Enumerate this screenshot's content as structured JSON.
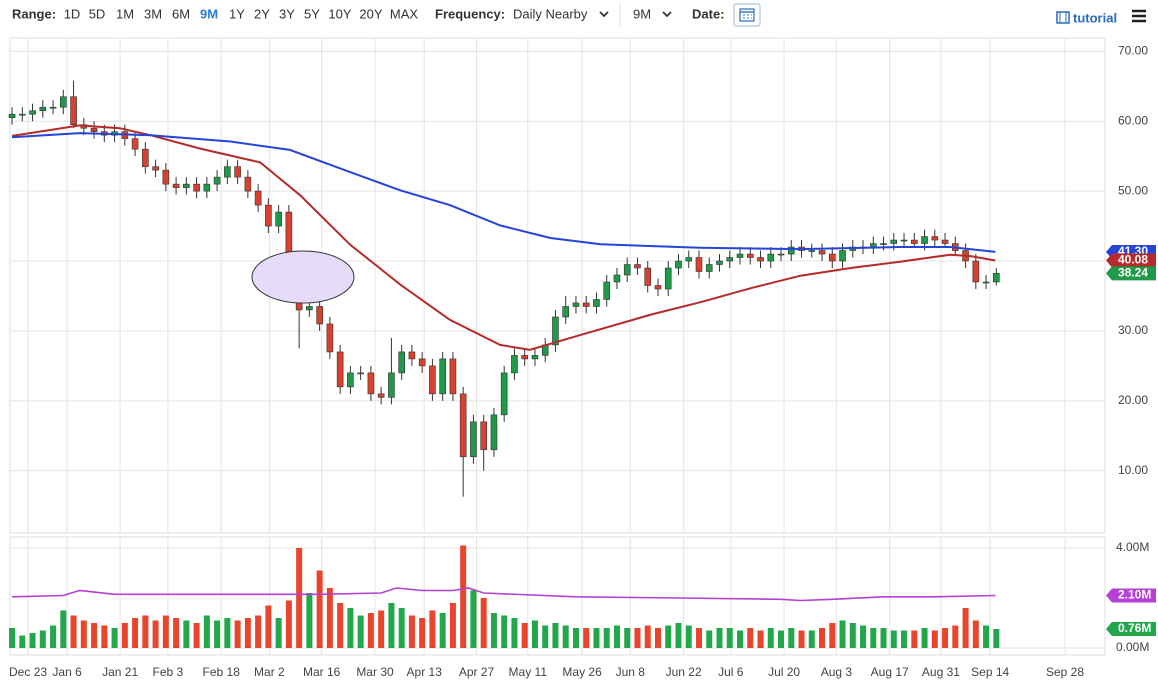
{
  "toolbar": {
    "range_label": "Range:",
    "ranges": [
      "1D",
      "5D",
      "1M",
      "3M",
      "6M",
      "9M",
      "1Y",
      "2Y",
      "3Y",
      "5Y",
      "10Y",
      "20Y",
      "MAX"
    ],
    "active": 5,
    "frequency_label": "Frequency:",
    "frequency": "Daily Nearby",
    "period": "9M",
    "date_label": "Date:",
    "tutorial": "tutorial"
  },
  "chart_data": [
    {
      "type": "candlestick",
      "up_color": "#1f9a48",
      "down_color": "#d8412f",
      "ylim": [
        1.1,
        71.9
      ],
      "yticks": [
        {
          "value": 10,
          "label": "10.00"
        },
        {
          "value": 20,
          "label": "20.00"
        },
        {
          "value": 30,
          "label": "30.00"
        },
        {
          "value": 40,
          "label": "40.00"
        },
        {
          "value": 50,
          "label": "50.00"
        },
        {
          "value": 60,
          "label": "60.00"
        },
        {
          "value": 70,
          "label": "70.00"
        }
      ],
      "open": [
        60.5,
        61,
        61,
        61.5,
        62,
        62,
        63.5,
        59.5,
        59,
        58.5,
        58,
        58.5,
        57.5,
        56,
        53.5,
        53,
        51,
        50.5,
        51,
        50,
        51,
        52,
        53.5,
        52,
        50,
        48,
        45,
        47,
        34,
        33,
        33.5,
        31,
        27,
        22,
        24,
        24,
        21,
        20.5,
        24,
        27,
        26,
        25,
        21,
        26,
        21,
        12,
        17,
        13,
        18,
        24,
        26.5,
        26,
        26.5,
        28,
        32,
        33.5,
        34,
        33.5,
        34.5,
        37,
        38,
        39.5,
        39,
        36.5,
        36,
        39,
        40,
        40.5,
        38.5,
        39.5,
        40,
        40.5,
        41,
        40.5,
        40,
        41,
        41,
        42,
        41.5,
        41.5,
        41,
        40,
        41.5,
        42,
        42,
        42.5,
        42.5,
        43,
        43,
        42.5,
        43.5,
        43,
        42.5,
        41.5,
        40,
        37,
        37
      ],
      "high": [
        62,
        62,
        62.5,
        63,
        63,
        64.5,
        65.8,
        60.5,
        60,
        59.5,
        59.5,
        59.5,
        58.5,
        57,
        54.5,
        54,
        52,
        52,
        52,
        52,
        53,
        54.5,
        54.5,
        53,
        51,
        49,
        48,
        48,
        36.5,
        34.5,
        34.5,
        32,
        28,
        25,
        25,
        25,
        22,
        29,
        28,
        28,
        27,
        26,
        27,
        27,
        22,
        18,
        18,
        19,
        25,
        27.5,
        27.5,
        27.5,
        29,
        33,
        35,
        35,
        35,
        35.5,
        38,
        39,
        40.5,
        40.5,
        40,
        37.5,
        40,
        41,
        41.5,
        41.5,
        40.5,
        41,
        41.5,
        42,
        42,
        41.5,
        42,
        42,
        43,
        43,
        42.5,
        42.5,
        42,
        42.5,
        43,
        43,
        43.5,
        43.5,
        44,
        44,
        44,
        44.5,
        44.5,
        44,
        43.5,
        42.5,
        41,
        38,
        39
      ],
      "low": [
        59.5,
        60,
        60,
        60.5,
        61,
        61,
        59,
        58,
        57.5,
        57,
        57,
        56.5,
        55,
        52.5,
        52,
        50,
        49.5,
        49.5,
        49,
        49,
        50,
        51,
        51,
        49,
        47,
        44,
        44,
        40.5,
        27.5,
        32,
        30,
        26,
        21,
        21,
        23,
        20,
        19.5,
        19.5,
        23,
        25,
        24,
        20,
        20,
        20,
        6.3,
        11,
        10,
        12,
        17,
        23,
        25,
        25,
        25.5,
        27,
        31,
        32.5,
        32.5,
        32.5,
        33.5,
        36,
        37,
        38,
        35.5,
        35,
        35,
        38,
        39,
        37.5,
        37.5,
        38.5,
        39,
        39.5,
        39.5,
        39,
        39,
        40,
        40,
        40.5,
        40.5,
        40,
        39,
        39,
        40.5,
        41,
        41,
        41.5,
        41.5,
        42,
        42,
        41.5,
        42,
        42,
        41,
        39,
        36,
        36,
        36.5
      ],
      "close": [
        61,
        61,
        61.5,
        62,
        62,
        63.5,
        59.5,
        59,
        58.5,
        58,
        58.5,
        57.5,
        56,
        53.5,
        53,
        51,
        50.5,
        51,
        50,
        51,
        52,
        53.5,
        52,
        50,
        48,
        45,
        47,
        41,
        33,
        33.5,
        31,
        27,
        22,
        24,
        24,
        21,
        20.5,
        24,
        27,
        26,
        25,
        21,
        26,
        21,
        12,
        17,
        13,
        18,
        24,
        26.5,
        26,
        26.5,
        28,
        32,
        33.5,
        34,
        33.5,
        34.5,
        37,
        38,
        39.5,
        39,
        36.5,
        36,
        39,
        40,
        40.5,
        38.5,
        39.5,
        40,
        40.5,
        41,
        40.5,
        40,
        41,
        41,
        42,
        41.5,
        41.5,
        41,
        40,
        41.5,
        42,
        42,
        42.5,
        42.5,
        43,
        43,
        42.5,
        43.5,
        43,
        42.5,
        41.5,
        40,
        37,
        37,
        38.24
      ],
      "close_badge": 38.24,
      "series": [
        {
          "color": "#b52a2a",
          "x": [
            0,
            6.6,
            10.5,
            13.5,
            18.3,
            24.2,
            28.1,
            33,
            37.9,
            42.7,
            47.6,
            50.5,
            55.4,
            62.2,
            67.1,
            72,
            76.9,
            81.8,
            86.6,
            91.5,
            93.5,
            95.9
          ],
          "values": [
            57.9,
            59.4,
            59,
            58,
            56.1,
            54.1,
            49.4,
            42.3,
            36.6,
            31.6,
            28,
            27.3,
            29.4,
            32.3,
            34.1,
            36.1,
            37.9,
            39,
            39.9,
            40.9,
            40.7,
            40.08
          ],
          "badge": 40.08
        },
        {
          "color": "#2544d8",
          "x": [
            0,
            6.6,
            13.5,
            21.3,
            27.1,
            33,
            37.9,
            42.7,
            47.6,
            52.5,
            57.4,
            67.1,
            76.9,
            86.6,
            91.5,
            95.9
          ],
          "values": [
            57.7,
            58.3,
            58,
            57.1,
            55.9,
            52.7,
            50.1,
            48,
            45.1,
            43.3,
            42.4,
            41.9,
            41.7,
            42,
            42,
            41.3
          ],
          "badge": {
            "value": 41.3,
            "label": "41.30"
          }
        }
      ]
    },
    {
      "type": "bar",
      "up_color": "#22a74a",
      "down_color": "#e8452c",
      "xlim": [
        -0.2,
        106.6
      ],
      "xticks": [
        {
          "value": 1.56,
          "label": "Dec 23"
        },
        {
          "value": 5.37,
          "label": "Jan 6"
        },
        {
          "value": 10.54,
          "label": "Jan 21"
        },
        {
          "value": 15.2,
          "label": "Feb 3"
        },
        {
          "value": 20.4,
          "label": "Feb 18"
        },
        {
          "value": 25.1,
          "label": "Mar 2"
        },
        {
          "value": 30.2,
          "label": "Mar 16"
        },
        {
          "value": 35.4,
          "label": "Mar 30"
        },
        {
          "value": 40.2,
          "label": "Apr 13"
        },
        {
          "value": 45.3,
          "label": "Apr 27"
        },
        {
          "value": 50.3,
          "label": "May 11"
        },
        {
          "value": 55.6,
          "label": "May 26"
        },
        {
          "value": 60.3,
          "label": "Jun 8"
        },
        {
          "value": 65.5,
          "label": "Jun 22"
        },
        {
          "value": 70.1,
          "label": "Jul 6"
        },
        {
          "value": 75.3,
          "label": "Jul 20"
        },
        {
          "value": 80.4,
          "label": "Aug 3"
        },
        {
          "value": 85.6,
          "label": "Aug 17"
        },
        {
          "value": 90.6,
          "label": "Aug 31"
        },
        {
          "value": 95.4,
          "label": "Sep 14"
        },
        {
          "value": 102.7,
          "label": "Sep 28"
        }
      ],
      "ylim": [
        -0.28,
        4.44
      ],
      "yticks": [
        {
          "value": 0,
          "label": "0.00M"
        },
        {
          "value": 4,
          "label": "4.00M"
        }
      ],
      "values": [
        0.8,
        0.5,
        0.6,
        0.7,
        0.9,
        1.5,
        1.3,
        1.1,
        1.0,
        0.9,
        0.8,
        1.0,
        1.2,
        1.3,
        1.1,
        1.3,
        1.2,
        1.1,
        1.0,
        1.3,
        1.1,
        1.2,
        1.1,
        1.2,
        1.3,
        1.7,
        1.2,
        1.9,
        4.0,
        2.2,
        3.1,
        2.4,
        1.8,
        1.6,
        1.3,
        1.4,
        1.5,
        1.8,
        1.6,
        1.3,
        1.2,
        1.5,
        1.4,
        1.8,
        4.1,
        2.3,
        2.0,
        1.4,
        1.3,
        1.2,
        1.0,
        1.1,
        0.9,
        1.0,
        0.9,
        0.8,
        0.8,
        0.8,
        0.8,
        0.9,
        0.8,
        0.8,
        0.9,
        0.8,
        0.9,
        1.0,
        0.9,
        0.8,
        0.7,
        0.8,
        0.8,
        0.7,
        0.8,
        0.7,
        0.8,
        0.7,
        0.8,
        0.7,
        0.7,
        0.8,
        1.0,
        1.1,
        1.0,
        0.9,
        0.8,
        0.8,
        0.7,
        0.7,
        0.7,
        0.8,
        0.7,
        0.8,
        0.9,
        1.6,
        1.1,
        0.9,
        0.76
      ],
      "last_badge": {
        "value": 0.76,
        "label": "0.76M"
      },
      "series": [
        {
          "color": "#b63fd6",
          "x": [
            0,
            5,
            6.6,
            10,
            20,
            30,
            36,
            37.5,
            40,
            43,
            44.5,
            46,
            55,
            65,
            75,
            76.9,
            80,
            85,
            90,
            95.9
          ],
          "values": [
            2.05,
            2.1,
            2.3,
            2.15,
            2.15,
            2.15,
            2.2,
            2.4,
            2.3,
            2.3,
            2.4,
            2.2,
            2.05,
            2.0,
            1.95,
            1.9,
            1.95,
            2.05,
            2.05,
            2.1
          ],
          "badge": {
            "value": 2.1,
            "label": "2.10M"
          }
        }
      ]
    }
  ]
}
